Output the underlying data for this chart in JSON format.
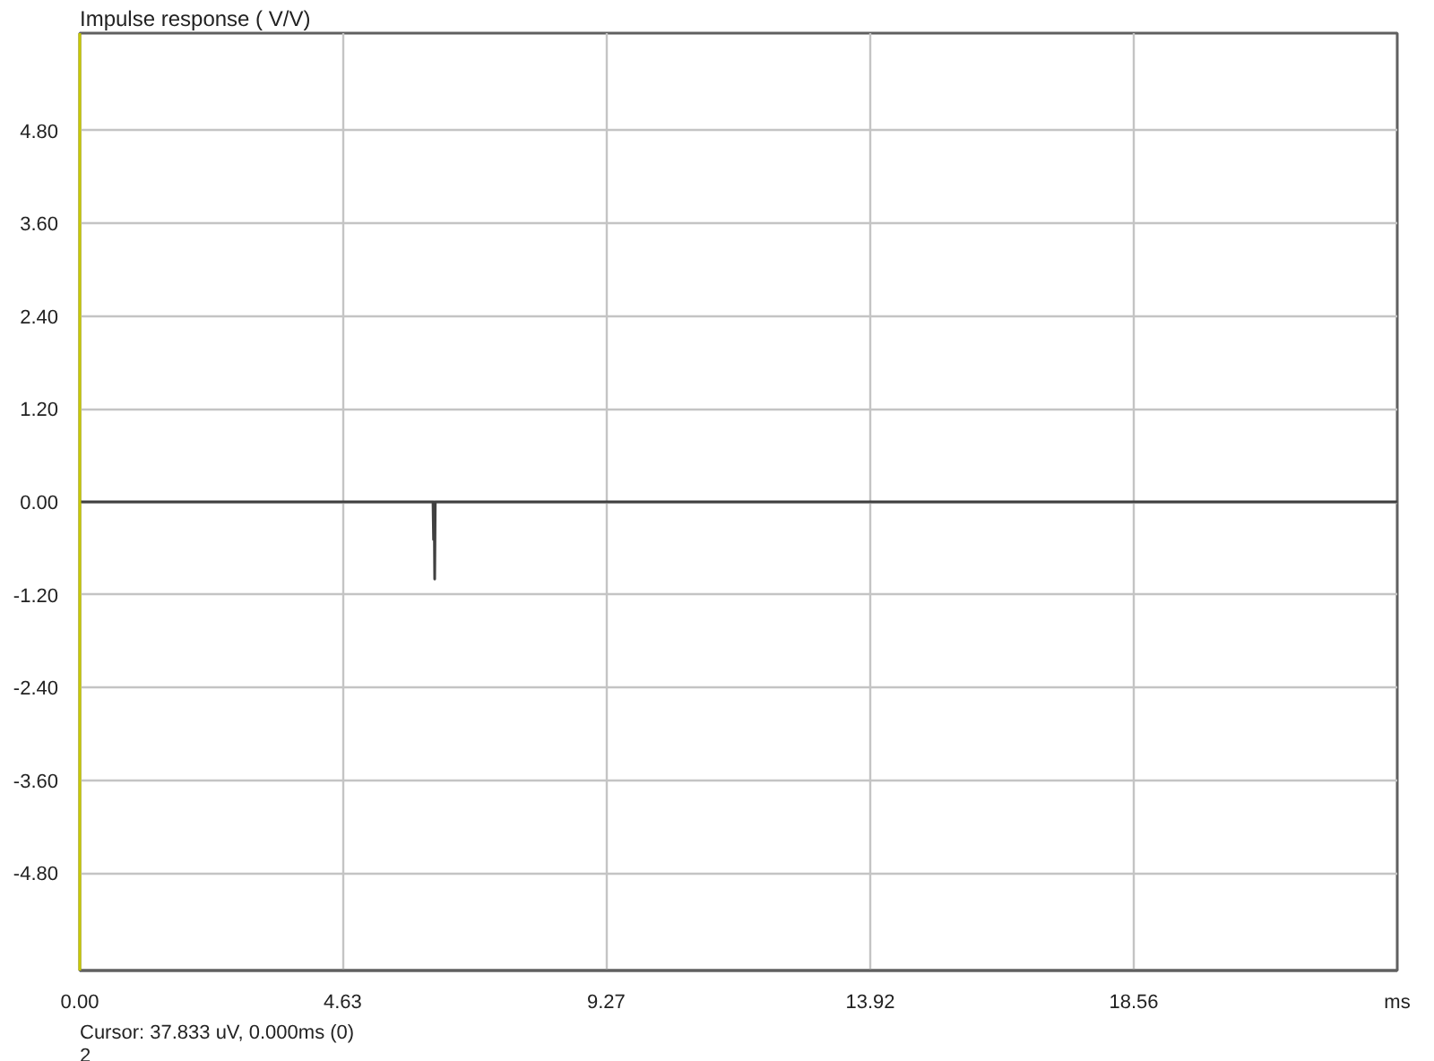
{
  "chart_data": {
    "type": "line",
    "title": "Impulse response ( V/V)",
    "xlim": [
      0,
      23.2
    ],
    "xticks": [
      {
        "value": 0,
        "label": "0.00"
      },
      4.63,
      9.27,
      13.92,
      18.56,
      {
        "value": 23.2,
        "label": "ms"
      }
    ],
    "ylim": [
      -6.06,
      6.06
    ],
    "yticks": [
      {
        "value": -4.8,
        "label": "-4.80"
      },
      {
        "value": -3.6,
        "label": "-3.60"
      },
      {
        "value": -2.4,
        "label": "-2.40"
      },
      {
        "value": -1.2,
        "label": "-1.20"
      },
      {
        "value": 0,
        "label": "0.00"
      },
      {
        "value": 1.2,
        "label": "1.20"
      },
      {
        "value": 2.4,
        "label": "2.40"
      },
      {
        "value": 3.6,
        "label": "3.60"
      },
      {
        "value": 4.8,
        "label": "4.80"
      }
    ],
    "grid": true,
    "series": [
      {
        "color": "#404040",
        "x": [
          0,
          6.22,
          6.23,
          6.24,
          6.25,
          6.26,
          6.27,
          23.2
        ],
        "values": [
          0,
          0,
          -0.49,
          0,
          -1.0,
          0,
          0,
          0
        ]
      }
    ],
    "annotations": [
      "Cursor: 37.833 uV, 0.000ms (0)",
      "2"
    ]
  }
}
